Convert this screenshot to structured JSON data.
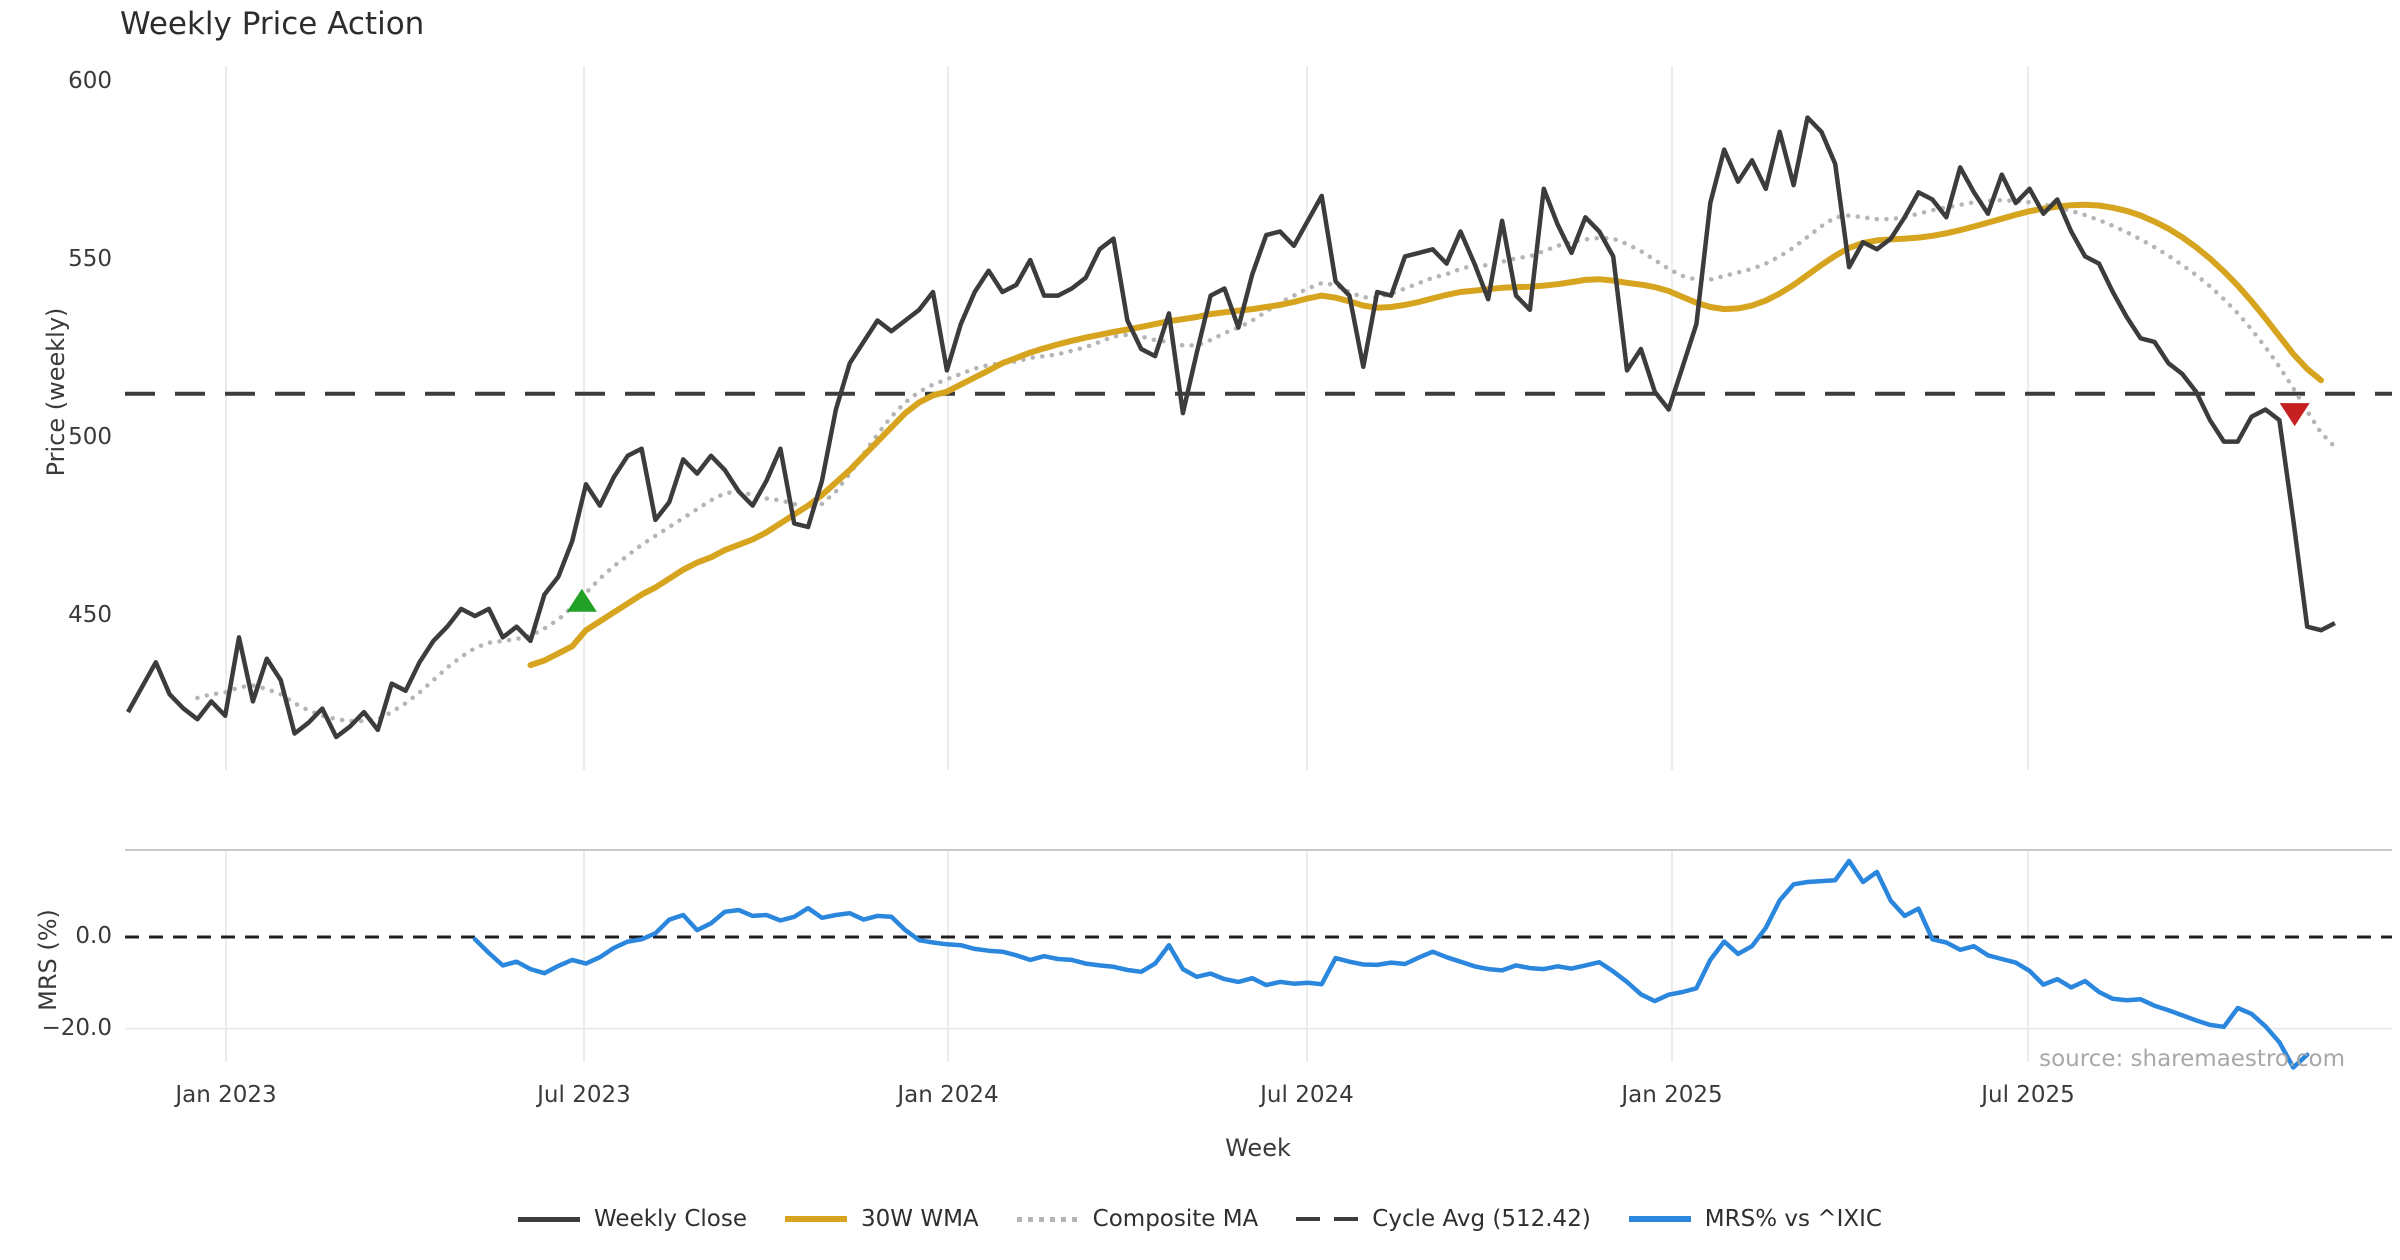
{
  "title": "Weekly Price Action",
  "source": "source: sharemaestro.com",
  "axes": {
    "price_label": "Price (weekly)",
    "mrs_label": "MRS (%)",
    "x_label": "Week",
    "price_ticks": [
      600,
      550,
      500,
      450
    ],
    "mrs_ticks": [
      {
        "label": "0.0",
        "value": 0
      },
      {
        "label": "−20.0",
        "value": -20
      }
    ],
    "x_ticks": [
      {
        "label": "Jan 2023",
        "t": 7.06
      },
      {
        "label": "Jul 2023",
        "t": 32.85
      },
      {
        "label": "Jan 2024",
        "t": 59.08
      },
      {
        "label": "Jul 2024",
        "t": 84.94
      },
      {
        "label": "Jan 2025",
        "t": 111.24
      },
      {
        "label": "Jul 2025",
        "t": 136.89
      }
    ]
  },
  "legend": {
    "items": [
      {
        "label": "Weekly Close"
      },
      {
        "label": "30W WMA"
      },
      {
        "label": "Composite MA"
      },
      {
        "label": "Cycle Avg (512.42)"
      },
      {
        "label": "MRS% vs ^IXIC"
      }
    ]
  },
  "colors": {
    "weekly_close": "#3c3c3c",
    "wma": "#d6a41e",
    "composite": "#b5b5b5",
    "cycle_avg": "#3c3c3c",
    "mrs": "#2b87dd",
    "buy_marker": "#22a127",
    "sell_marker": "#c62120",
    "grid": "#ececec",
    "spine": "#c9c9c9",
    "zero_line": "#1f1f1f"
  },
  "chart_data": [
    {
      "type": "line",
      "title": "Weekly Price Action",
      "xlabel": "Week",
      "ylabel": "Price (weekly)",
      "ylim": [
        406,
        604
      ],
      "x_unit": "week index, weekly data from ~Nov 2022 to ~Nov 2025",
      "grid": "vertical-only",
      "cycle_avg_value": 512.42,
      "series": [
        {
          "name": "Weekly Close",
          "style": "solid",
          "t0": 0,
          "values": [
            423,
            430,
            437,
            428,
            424,
            421,
            426,
            422,
            444,
            426,
            438,
            432,
            417,
            420,
            424,
            416,
            419,
            423,
            418,
            431,
            429,
            437,
            443,
            447,
            452,
            450,
            452,
            444,
            447,
            443,
            456,
            461,
            471,
            487,
            481,
            489,
            495,
            497,
            477,
            482,
            494,
            490,
            495,
            491,
            485,
            481,
            488,
            497,
            476,
            475,
            488,
            508,
            521,
            527,
            533,
            530,
            533,
            536,
            541,
            519,
            532,
            541,
            547,
            541,
            543,
            550,
            540,
            540,
            542,
            545,
            553,
            556,
            533,
            525,
            523,
            535,
            507,
            524,
            540,
            542,
            531,
            546,
            557,
            558,
            554,
            561,
            568,
            544,
            540,
            520,
            541,
            540,
            551,
            552,
            553,
            549,
            558,
            549,
            539,
            561,
            540,
            536,
            570,
            560,
            552,
            562,
            558,
            551,
            519,
            525,
            513,
            508,
            520,
            532,
            566,
            581,
            572,
            578,
            570,
            586,
            571,
            590,
            586,
            577,
            548,
            555,
            553,
            556,
            562,
            569,
            567,
            562,
            576,
            569,
            563,
            574,
            566,
            570,
            563,
            567,
            558,
            551,
            549,
            541,
            534,
            528,
            527,
            521,
            518,
            513,
            505,
            499,
            499,
            506,
            508,
            505,
            477,
            447,
            446,
            448
          ]
        },
        {
          "name": "30W WMA",
          "style": "solid",
          "t0": 29,
          "values": [
            436.2,
            437.5,
            439.5,
            441.5,
            446,
            448.5,
            451,
            453.5,
            456,
            458,
            460.5,
            463,
            465,
            466.5,
            468.5,
            470,
            471.5,
            473.5,
            476,
            478.5,
            481,
            484,
            487.5,
            491,
            495,
            499,
            503,
            507,
            510,
            512,
            513,
            515,
            517,
            519,
            521,
            522.5,
            524,
            525.2,
            526.3,
            527.3,
            528.2,
            529,
            529.8,
            530.5,
            531.2,
            532,
            532.8,
            533.4,
            534,
            534.8,
            535.3,
            535.8,
            536.2,
            536.8,
            537.4,
            538.2,
            539.2,
            540,
            539.4,
            538.4,
            537.2,
            536.6,
            536.8,
            537.4,
            538.2,
            539.2,
            540.2,
            541,
            541.4,
            541.8,
            542.2,
            542.4,
            542.5,
            542.8,
            543.2,
            543.8,
            544.4,
            544.6,
            544.2,
            543.6,
            543.1,
            542.4,
            541.3,
            539.6,
            538,
            536.8,
            536.2,
            536.4,
            537.2,
            538.6,
            540.6,
            543,
            545.8,
            548.6,
            551.2,
            553.4,
            554.8,
            555.5,
            555.8,
            556,
            556.3,
            556.8,
            557.5,
            558.4,
            559.4,
            560.5,
            561.6,
            562.7,
            563.7,
            564.4,
            565,
            565.4,
            565.5,
            565.3,
            564.7,
            563.8,
            562.5,
            560.8,
            558.8,
            556.4,
            553.6,
            550.4,
            546.8,
            542.8,
            538.4,
            533.6,
            528.6,
            523.6,
            519.4,
            516.2
          ]
        },
        {
          "name": "Composite MA",
          "style": "dotted",
          "t0": 5,
          "values": [
            427,
            428,
            428.5,
            430,
            430.5,
            429.5,
            428,
            425.5,
            423.5,
            422,
            421,
            420.5,
            420.5,
            421,
            423,
            425.5,
            428.5,
            432,
            435.5,
            438.5,
            441,
            442.5,
            443,
            443.5,
            444.5,
            446.5,
            449,
            452.5,
            456.5,
            460.5,
            464,
            467,
            470,
            472.5,
            475,
            477.5,
            480,
            482.5,
            484.5,
            485,
            484,
            483,
            482.5,
            481.5,
            480,
            481.5,
            485,
            490,
            495.5,
            501,
            506,
            510,
            513,
            515,
            516.5,
            518,
            519.5,
            520.5,
            521,
            521.5,
            522.5,
            523,
            523.5,
            524.5,
            525.5,
            527,
            528.5,
            529,
            528.5,
            527.5,
            527,
            526,
            526,
            527.5,
            529.5,
            531,
            533,
            535.5,
            538,
            540,
            542,
            543.5,
            543,
            541,
            539.5,
            539.5,
            540.5,
            542,
            543.5,
            545,
            546,
            547.5,
            548.5,
            548.5,
            549.5,
            550.5,
            551,
            552.5,
            554,
            555,
            555.8,
            556.2,
            556,
            554.5,
            552.5,
            550,
            547.5,
            545.5,
            544.5,
            544.5,
            545.5,
            546.5,
            547.5,
            549,
            551,
            553.5,
            556.5,
            559.5,
            562,
            562.5,
            562,
            561.5,
            561.5,
            562,
            563,
            564,
            564.8,
            565.5,
            566.2,
            566.6,
            566.8,
            566.6,
            566.2,
            565.6,
            564.8,
            563.8,
            562.6,
            561.2,
            559.6,
            557.8,
            555.8,
            553.6,
            551.2,
            548.6,
            545.8,
            542.6,
            539,
            535,
            530.5,
            525.5,
            520,
            514,
            507.5,
            501.5,
            497.5
          ]
        },
        {
          "name": "Cycle Avg (512.42)",
          "style": "dashed",
          "constant": 512.42
        }
      ],
      "markers": [
        {
          "name": "buy-signal",
          "shape": "triangle-up",
          "t": 32.7,
          "price": 454
        },
        {
          "name": "sell-signal",
          "shape": "triangle-down",
          "t": 156.1,
          "price": 507
        }
      ]
    },
    {
      "type": "line",
      "ylabel": "MRS (%)",
      "ylim": [
        -31,
        19
      ],
      "zero_dashed_line": true,
      "series": [
        {
          "name": "MRS% vs ^IXIC",
          "style": "solid",
          "t0": 25,
          "values": [
            -0.5,
            -3.5,
            -6.2,
            -5.4,
            -7.0,
            -7.9,
            -6.3,
            -5.0,
            -5.8,
            -4.4,
            -2.4,
            -1.0,
            -0.5,
            0.8,
            3.8,
            4.8,
            1.5,
            3.0,
            5.5,
            5.9,
            4.6,
            4.8,
            3.6,
            4.4,
            6.3,
            4.2,
            4.8,
            5.2,
            3.8,
            4.6,
            4.4,
            1.5,
            -0.7,
            -1.2,
            -1.6,
            -1.8,
            -2.6,
            -3.0,
            -3.2,
            -4.0,
            -5.0,
            -4.2,
            -4.8,
            -5.0,
            -5.8,
            -6.2,
            -6.5,
            -7.2,
            -7.6,
            -5.8,
            -1.8,
            -7.0,
            -8.7,
            -8.0,
            -9.2,
            -9.8,
            -9.0,
            -10.5,
            -9.8,
            -10.2,
            -10.0,
            -10.3,
            -4.6,
            -5.4,
            -6.0,
            -6.1,
            -5.6,
            -5.9,
            -4.5,
            -3.2,
            -4.4,
            -5.4,
            -6.4,
            -7.0,
            -7.3,
            -6.2,
            -6.8,
            -7.0,
            -6.4,
            -6.9,
            -6.2,
            -5.5,
            -7.5,
            -9.8,
            -12.5,
            -14.0,
            -12.6,
            -12.0,
            -11.2,
            -5.0,
            -1.0,
            -3.7,
            -2.0,
            2.0,
            8.0,
            11.5,
            12.0,
            12.2,
            12.4,
            16.6,
            12.0,
            14.2,
            7.9,
            4.6,
            6.2,
            -0.5,
            -1.2,
            -2.8,
            -2.0,
            -4.0,
            -4.8,
            -5.6,
            -7.4,
            -10.4,
            -9.2,
            -11.0,
            -9.6,
            -12.0,
            -13.5,
            -13.8,
            -13.6,
            -15.0,
            -16.0,
            -17.1,
            -18.2,
            -19.2,
            -19.6,
            -15.5,
            -16.8,
            -19.5,
            -23.0,
            -28.5,
            -25.7
          ]
        }
      ]
    }
  ]
}
